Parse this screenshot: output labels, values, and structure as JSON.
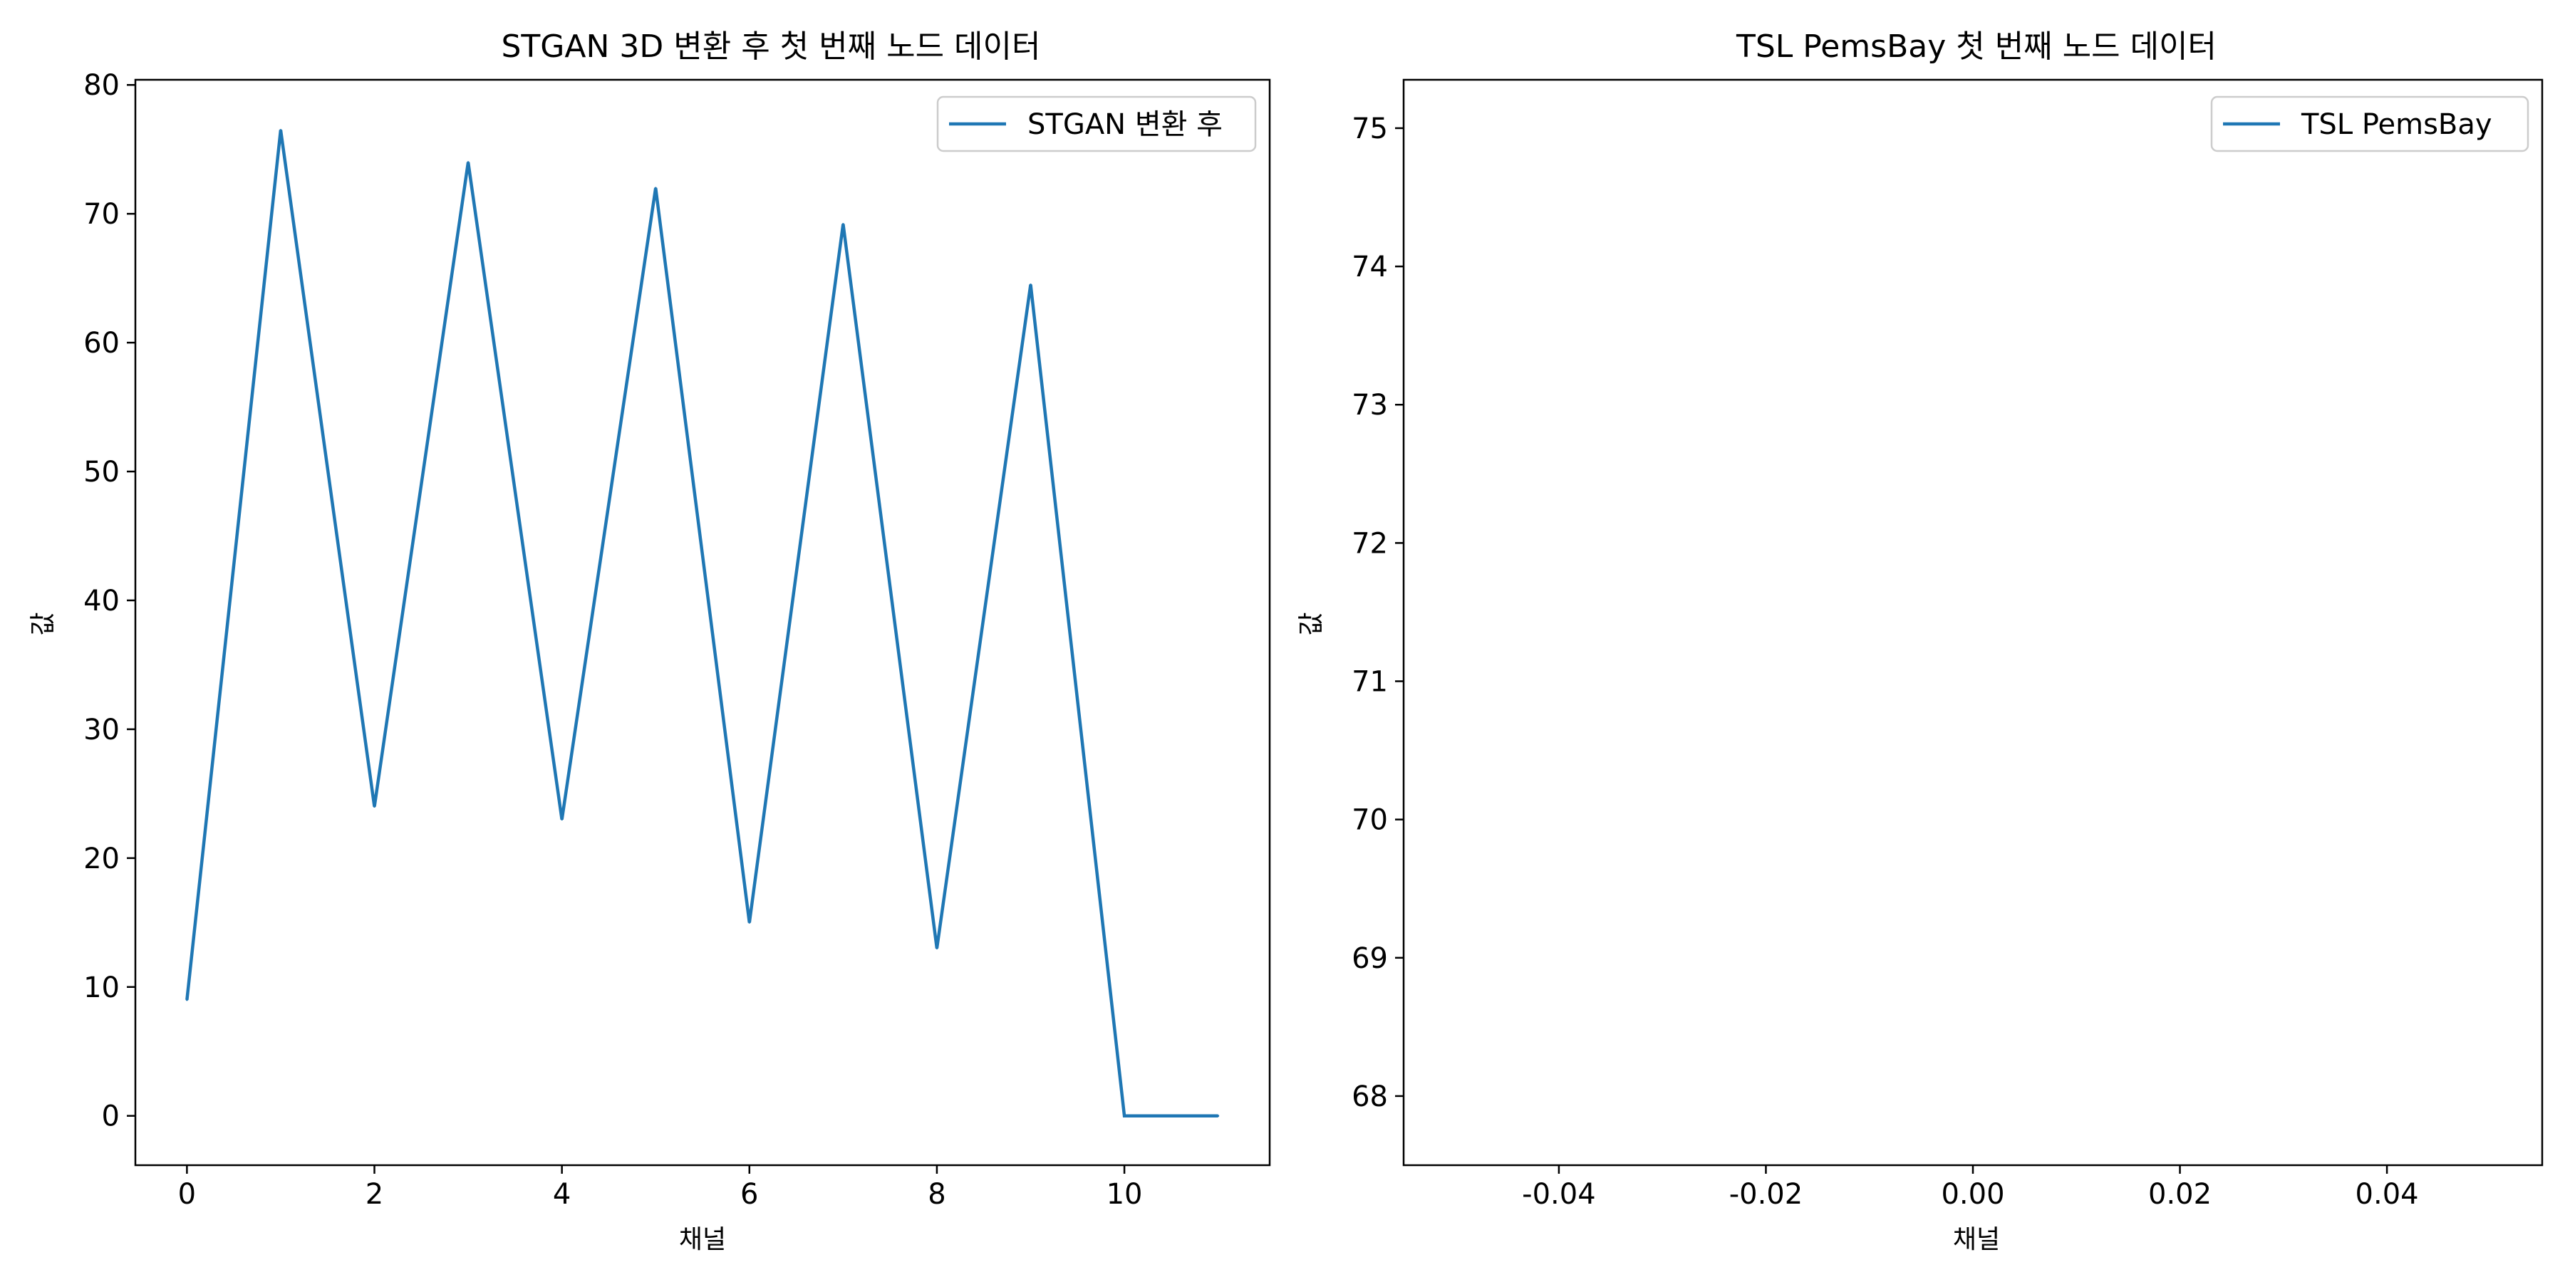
{
  "chart_data": [
    {
      "type": "line",
      "title": "STGAN 3D 변환 후 첫 번째 노드 데이터",
      "xlabel": "채널",
      "ylabel": "값",
      "xlim": [
        -0.55,
        11.55
      ],
      "ylim": [
        -3.83,
        80.4
      ],
      "xticks": [
        0,
        2,
        4,
        6,
        8,
        10
      ],
      "xtick_labels": [
        "0",
        "2",
        "4",
        "6",
        "8",
        "10"
      ],
      "yticks": [
        0,
        10,
        20,
        30,
        40,
        50,
        60,
        70,
        80
      ],
      "ytick_labels": [
        "0",
        "10",
        "20",
        "30",
        "40",
        "50",
        "60",
        "70",
        "80"
      ],
      "grid": false,
      "legend_position": "top-right",
      "series": [
        {
          "name": "STGAN 변환 후",
          "color": "#1f77b4",
          "x": [
            0,
            1,
            2,
            3,
            4,
            5,
            6,
            7,
            8,
            9,
            10,
            11
          ],
          "y": [
            9,
            76.5,
            24,
            74,
            23,
            72,
            15,
            69.2,
            13,
            64.5,
            0,
            0
          ]
        }
      ]
    },
    {
      "type": "line",
      "title": "TSL PemsBay 첫 번째 노드 데이터",
      "xlabel": "채널",
      "ylabel": "값",
      "xlim": [
        -0.055,
        0.055
      ],
      "ylim": [
        67.5,
        75.35
      ],
      "xticks": [
        -0.04,
        -0.02,
        0,
        0.02,
        0.04
      ],
      "xtick_labels": [
        "-0.04",
        "-0.02",
        "0.00",
        "0.02",
        "0.04"
      ],
      "yticks": [
        68,
        69,
        70,
        71,
        72,
        73,
        74,
        75
      ],
      "ytick_labels": [
        "68",
        "69",
        "70",
        "71",
        "72",
        "73",
        "74",
        "75"
      ],
      "grid": false,
      "legend_position": "top-right",
      "series": [
        {
          "name": "TSL PemsBay",
          "color": "#1f77b4",
          "x": [],
          "y": []
        }
      ]
    }
  ]
}
